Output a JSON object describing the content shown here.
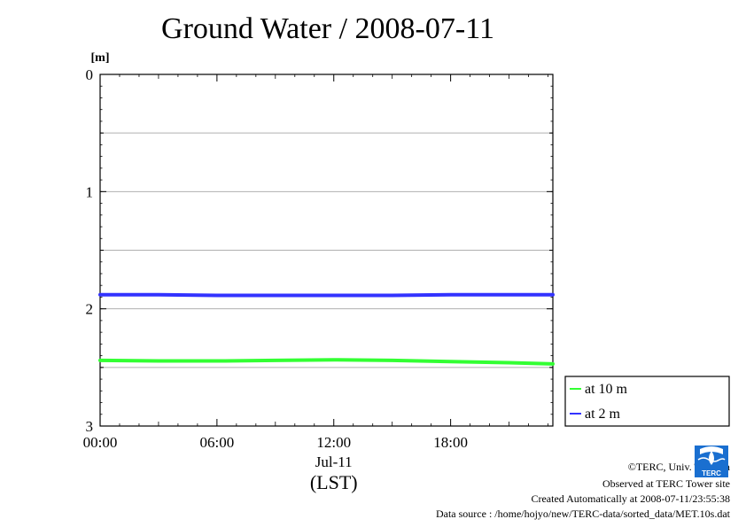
{
  "title": "Ground Water / 2008-07-11",
  "chart_data": {
    "type": "line",
    "title": "Ground Water / 2008-07-11",
    "y_unit": "[m]",
    "xlabel": "(LST)",
    "date_label": "Jul-11",
    "x_tick_labels": [
      "00:00",
      "06:00",
      "12:00",
      "18:00"
    ],
    "x_ticks_hours": [
      0,
      6,
      12,
      18
    ],
    "x_range_hours": [
      0,
      23.25
    ],
    "y_tick_labels": [
      "0",
      "1",
      "2",
      "3"
    ],
    "y_ticks": [
      0,
      1,
      2,
      3
    ],
    "y_minor_grid": [
      0.5,
      1.5,
      2.5
    ],
    "ylim": [
      0,
      3
    ],
    "y_inverted": true,
    "grid": true,
    "legend_position": "right, below plot",
    "x_hours": [
      0,
      3,
      6,
      9,
      12,
      15,
      18,
      21,
      23.25
    ],
    "series": [
      {
        "name": "at 10 m",
        "color": "#33ff33",
        "values": [
          2.44,
          2.445,
          2.445,
          2.44,
          2.435,
          2.44,
          2.45,
          2.46,
          2.47
        ]
      },
      {
        "name": "at 2 m",
        "color": "#3333ff",
        "values": [
          1.88,
          1.88,
          1.885,
          1.885,
          1.885,
          1.885,
          1.88,
          1.88,
          1.88
        ]
      }
    ]
  },
  "footer": {
    "copyright": "©TERC, Univ. Tsukuba",
    "observed": "Observed at TERC Tower site",
    "created": "Created Automatically at 2008-07-11/23:55:38",
    "source": "Data source : /home/hojyo/new/TERC-data/sorted_data/MET.10s.dat",
    "logo_text": "TERC"
  }
}
